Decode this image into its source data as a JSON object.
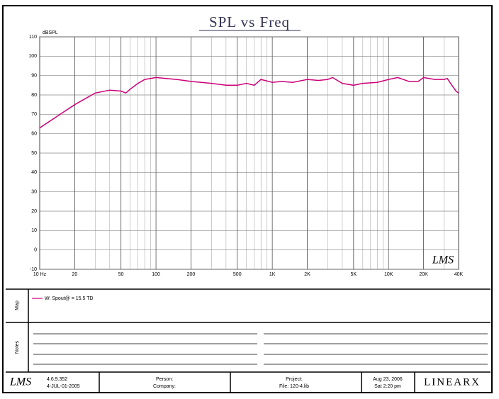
{
  "chart_data": {
    "type": "line",
    "title": "SPL  vs  Freq",
    "y_label": "dBSPL",
    "log_x": true,
    "grid": true,
    "x": [
      10,
      15,
      20,
      30,
      40,
      50,
      55,
      60,
      70,
      80,
      100,
      150,
      200,
      300,
      400,
      500,
      600,
      700,
      800,
      1000,
      1200,
      1500,
      2000,
      2500,
      3000,
      3300,
      4000,
      5000,
      6000,
      8000,
      10000,
      12000,
      15000,
      18000,
      20000,
      25000,
      30000,
      32000,
      35000,
      38000,
      40000
    ],
    "series": [
      {
        "name": "W: Spout@ = 15.5 TD",
        "color": "#cc0077",
        "values": [
          63,
          70,
          75,
          81,
          82.5,
          82,
          81,
          83,
          86,
          88,
          89,
          88,
          87,
          86,
          85,
          85,
          86,
          85,
          88,
          86.5,
          87,
          86.5,
          88,
          87.5,
          88,
          89,
          86,
          85,
          86,
          86.5,
          88,
          89,
          87,
          87,
          89,
          88,
          88,
          88.5,
          85,
          82,
          81
        ]
      }
    ],
    "xlim": [
      10,
      40000
    ],
    "ylim": [
      -10,
      110
    ],
    "xticks": [
      {
        "value": 10,
        "label": "10 Hz"
      },
      20,
      50,
      100,
      200,
      500,
      {
        "value": 1000,
        "label": "1K"
      },
      {
        "value": 2000,
        "label": "2K"
      },
      {
        "value": 5000,
        "label": "5K"
      },
      {
        "value": 10000,
        "label": "10K"
      },
      {
        "value": 20000,
        "label": "20K"
      },
      {
        "value": 40000,
        "label": "40K"
      }
    ],
    "yticks": [
      -10,
      0,
      10,
      20,
      30,
      40,
      50,
      60,
      70,
      80,
      90,
      100,
      110
    ]
  },
  "plot_logo": "LMS",
  "side": {
    "map": "Map",
    "notes": "Notes"
  },
  "footer": {
    "logo": "LMS",
    "version": "4.6.9.352",
    "build": "4-JUL-01-2005",
    "person": "Person:",
    "company": "Company:",
    "project": "Project:",
    "file": "File: 120-4.lib",
    "date": "Aug 23, 2006",
    "time": "Sat 2:20 pm",
    "brand": "LINEARX"
  }
}
